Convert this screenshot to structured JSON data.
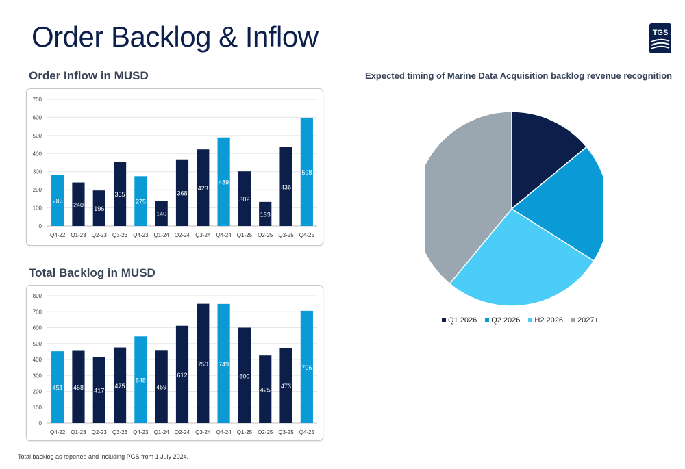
{
  "page": {
    "title": "Order Backlog & Inflow",
    "logo_text": "TGS",
    "footnote": "Total backlog as reported and including PGS from 1 July 2024."
  },
  "colors": {
    "dark_navy": "#0b1f4a",
    "blue": "#0a9ad6",
    "light_blue": "#4ccdf7",
    "gray": "#9aa6b0",
    "title": "#0b1f4a"
  },
  "chart_data": [
    {
      "id": "inflow",
      "type": "bar",
      "title": "Order Inflow in MUSD",
      "categories": [
        "Q4-22",
        "Q1-23",
        "Q2-23",
        "Q3-23",
        "Q4-23",
        "Q1-24",
        "Q2-24",
        "Q3-24",
        "Q4-24",
        "Q1-25",
        "Q2-25",
        "Q3-25",
        "Q4-25"
      ],
      "values": [
        283,
        240,
        196,
        355,
        275,
        140,
        368,
        423,
        489,
        302,
        133,
        436,
        598
      ],
      "highlight": [
        true,
        false,
        false,
        false,
        true,
        false,
        false,
        false,
        true,
        false,
        false,
        false,
        true
      ],
      "ylim": [
        0,
        700
      ],
      "yticks": [
        0,
        100,
        200,
        300,
        400,
        500,
        600,
        700
      ],
      "grid": true
    },
    {
      "id": "backlog",
      "type": "bar",
      "title": "Total Backlog in MUSD",
      "categories": [
        "Q4-22",
        "Q1-23",
        "Q2-23",
        "Q3-23",
        "Q4-23",
        "Q1-24",
        "Q2-24",
        "Q3-24",
        "Q4-24",
        "Q1-25",
        "Q2-25",
        "Q3-25",
        "Q4-25"
      ],
      "values": [
        451,
        458,
        417,
        475,
        545,
        459,
        612,
        750,
        749,
        600,
        425,
        473,
        706
      ],
      "highlight": [
        true,
        false,
        false,
        false,
        true,
        false,
        false,
        false,
        true,
        false,
        false,
        false,
        true
      ],
      "ylim": [
        0,
        800
      ],
      "yticks": [
        0,
        100,
        200,
        300,
        400,
        500,
        600,
        700,
        800
      ],
      "grid": true
    },
    {
      "id": "timing",
      "type": "pie",
      "title": "Expected timing of Marine Data Acquisition backlog revenue recognition",
      "labels": [
        "Q1 2026",
        "Q2 2026",
        "H2 2026",
        "2027+"
      ],
      "values": [
        14,
        20,
        27,
        39
      ],
      "colors": [
        "#0b1f4a",
        "#0a9ad6",
        "#4ccdf7",
        "#9aa6b0"
      ],
      "legend_position": "bottom"
    }
  ]
}
